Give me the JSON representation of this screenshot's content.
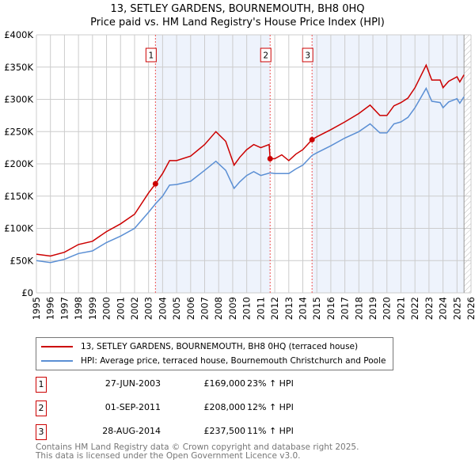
{
  "chart_data": {
    "type": "line",
    "title": "13, SETLEY GARDENS, BOURNEMOUTH, BH8 0HQ",
    "subtitle": "Price paid vs. HM Land Registry's House Price Index (HPI)",
    "xlim": [
      1995,
      2026
    ],
    "ylim": [
      0,
      400000
    ],
    "x_ticks": [
      "1995",
      "1996",
      "1997",
      "1998",
      "1999",
      "2000",
      "2001",
      "2002",
      "2003",
      "2004",
      "2005",
      "2006",
      "2007",
      "2008",
      "2009",
      "2010",
      "2011",
      "2012",
      "2013",
      "2014",
      "2015",
      "2016",
      "2017",
      "2018",
      "2019",
      "2020",
      "2021",
      "2022",
      "2023",
      "2024",
      "2025",
      "2026"
    ],
    "y_ticks": [
      {
        "v": 0,
        "label": "£0"
      },
      {
        "v": 50000,
        "label": "£50K"
      },
      {
        "v": 100000,
        "label": "£100K"
      },
      {
        "v": 150000,
        "label": "£150K"
      },
      {
        "v": 200000,
        "label": "£200K"
      },
      {
        "v": 250000,
        "label": "£250K"
      },
      {
        "v": 300000,
        "label": "£300K"
      },
      {
        "v": 350000,
        "label": "£350K"
      },
      {
        "v": 400000,
        "label": "£400K"
      }
    ],
    "grid": true,
    "series": [
      {
        "name": "13, SETLEY GARDENS, BOURNEMOUTH, BH8 0HQ (terraced house)",
        "color": "#cc0000",
        "x": [
          1995,
          1996,
          1997,
          1998,
          1999,
          2000,
          2001,
          2002,
          2003,
          2003.49,
          2004,
          2004.5,
          2005,
          2006,
          2007,
          2007.8,
          2008.5,
          2009.1,
          2009.5,
          2010,
          2010.5,
          2011,
          2011.6,
          2011.67,
          2012,
          2012.5,
          2013,
          2013.5,
          2014,
          2014.66,
          2015,
          2016,
          2017,
          2018,
          2018.8,
          2019.5,
          2020,
          2020.5,
          2021,
          2021.5,
          2022,
          2022.8,
          2023.2,
          2023.8,
          2024,
          2024.4,
          2025,
          2025.2,
          2025.5
        ],
        "y": [
          60,
          57,
          63,
          75,
          80,
          95,
          107,
          122,
          155,
          169,
          185,
          205,
          205,
          212,
          230,
          250,
          235,
          198,
          210,
          222,
          230,
          225,
          230,
          208,
          208,
          214,
          205,
          215,
          222,
          237.5,
          242,
          253,
          265,
          278,
          291,
          275,
          275,
          290,
          295,
          302,
          318,
          353,
          330,
          330,
          318,
          328,
          335,
          327,
          338
        ]
      },
      {
        "name": "HPI: Average price, terraced house, Bournemouth Christchurch and Poole",
        "color": "#5b8fd4",
        "x": [
          1995,
          1996,
          1997,
          1998,
          1999,
          2000,
          2001,
          2002,
          2003,
          2003.49,
          2004,
          2004.5,
          2005,
          2006,
          2007,
          2007.8,
          2008.5,
          2009.1,
          2009.5,
          2010,
          2010.5,
          2011,
          2011.67,
          2012,
          2013,
          2013.5,
          2014,
          2014.66,
          2015,
          2016,
          2017,
          2018,
          2018.8,
          2019.5,
          2020,
          2020.5,
          2021,
          2021.5,
          2022,
          2022.8,
          2023.2,
          2023.8,
          2024,
          2024.4,
          2025,
          2025.2,
          2025.5
        ],
        "y": [
          50,
          47,
          52,
          61,
          65,
          78,
          88,
          100,
          125,
          138,
          150,
          167,
          168,
          173,
          190,
          204,
          190,
          162,
          172,
          182,
          188,
          182,
          186,
          185,
          185,
          192,
          198,
          213,
          217,
          228,
          240,
          250,
          262,
          248,
          248,
          262,
          265,
          272,
          287,
          317,
          297,
          295,
          287,
          296,
          301,
          294,
          304
        ]
      }
    ],
    "y_units": "thousands GBP",
    "sales": [
      {
        "n": "1",
        "x": 2003.49,
        "y": 169,
        "date": "27-JUN-2003",
        "price": "£169,000",
        "hpi": "23% ↑ HPI"
      },
      {
        "n": "2",
        "x": 2011.67,
        "y": 208,
        "date": "01-SEP-2011",
        "price": "£208,000",
        "hpi": "12% ↑ HPI"
      },
      {
        "n": "3",
        "x": 2014.66,
        "y": 237.5,
        "date": "28-AUG-2014",
        "price": "£237,500",
        "hpi": "11% ↑ HPI"
      }
    ],
    "forecast_start": 2025.5,
    "legend_position": "below"
  },
  "footer": {
    "line1": "Contains HM Land Registry data © Crown copyright and database right 2025.",
    "line2": "This data is licensed under the Open Government Licence v3.0."
  }
}
